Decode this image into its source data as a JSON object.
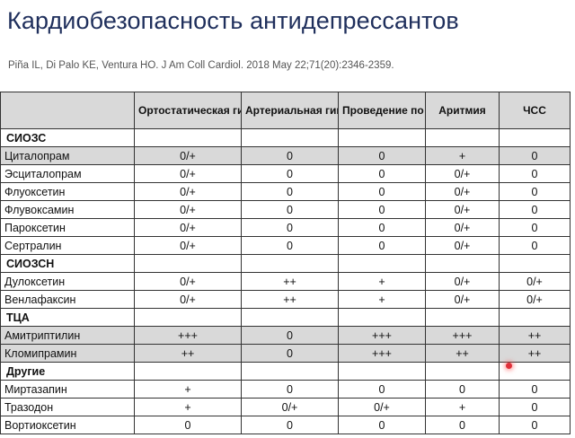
{
  "title": "Кардиобезопасность антидепрессантов",
  "citation": "Piña IL, Di Palo KE, Ventura HO. J Am Coll Cardiol. 2018 May 22;71(20):2346-2359.",
  "table": {
    "headers": [
      "",
      "Ортостатическая гипотензия",
      "Артериальная гипертензия",
      "Проведение по сердцу",
      "Аритмия",
      "ЧСС"
    ],
    "rows": [
      {
        "type": "group",
        "cells": [
          "СИОЗС",
          "",
          "",
          "",
          "",
          ""
        ]
      },
      {
        "type": "highlight",
        "cells": [
          "Циталопрам",
          "0/+",
          "0",
          "0",
          "+",
          "0"
        ]
      },
      {
        "type": "row",
        "cells": [
          "Эсциталопрам",
          "0/+",
          "0",
          "0",
          "0/+",
          "0"
        ]
      },
      {
        "type": "row",
        "cells": [
          "Флуоксетин",
          "0/+",
          "0",
          "0",
          "0/+",
          "0"
        ]
      },
      {
        "type": "row",
        "cells": [
          "Флувоксамин",
          "0/+",
          "0",
          "0",
          "0/+",
          "0"
        ]
      },
      {
        "type": "row",
        "cells": [
          "Пароксетин",
          "0/+",
          "0",
          "0",
          "0/+",
          "0"
        ]
      },
      {
        "type": "row",
        "cells": [
          "Сертралин",
          "0/+",
          "0",
          "0",
          "0/+",
          "0"
        ]
      },
      {
        "type": "group",
        "cells": [
          "СИОЗСН",
          "",
          "",
          "",
          "",
          ""
        ]
      },
      {
        "type": "row",
        "cells": [
          "Дулоксетин",
          "0/+",
          "++",
          "+",
          "0/+",
          "0/+"
        ]
      },
      {
        "type": "row",
        "cells": [
          "Венлафаксин",
          "0/+",
          "++",
          "+",
          "0/+",
          "0/+"
        ]
      },
      {
        "type": "group",
        "cells": [
          "ТЦА",
          "",
          "",
          "",
          "",
          ""
        ]
      },
      {
        "type": "highlight",
        "cells": [
          "Амитриптилин",
          "+++",
          "0",
          "+++",
          "+++",
          "++"
        ]
      },
      {
        "type": "highlight",
        "cells": [
          "Кломипрамин",
          "++",
          "0",
          "+++",
          "++",
          "++"
        ]
      },
      {
        "type": "group",
        "cells": [
          "Другие",
          "",
          "",
          "",
          "",
          ""
        ]
      },
      {
        "type": "row",
        "cells": [
          "Миртазапин",
          "+",
          "0",
          "0",
          "0",
          "0"
        ]
      },
      {
        "type": "row",
        "cells": [
          "Тразодон",
          "+",
          "0/+",
          "0/+",
          "+",
          "0"
        ]
      },
      {
        "type": "row",
        "cells": [
          "Вортиоксетин",
          "0",
          "0",
          "0",
          "0",
          "0"
        ]
      }
    ]
  },
  "colors": {
    "title": "#1f2f5c",
    "header_bg": "#d9d9d9",
    "highlight_bg": "#d9d9d9",
    "laser_pointer": "#e0303a"
  }
}
